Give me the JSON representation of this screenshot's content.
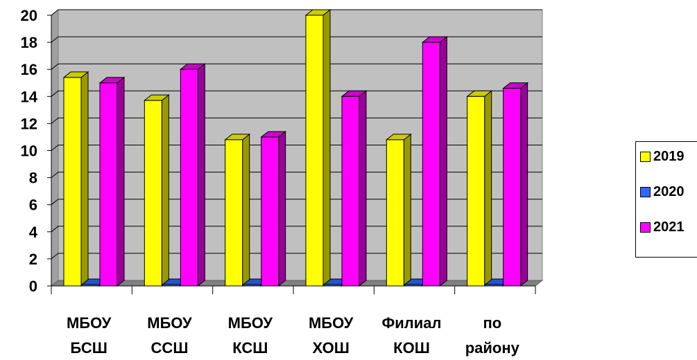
{
  "chart_data": {
    "type": "bar",
    "title": "",
    "xlabel": "",
    "ylabel": "",
    "ylim": [
      0,
      20
    ],
    "yticks": [
      0,
      2,
      4,
      6,
      8,
      10,
      12,
      14,
      16,
      18,
      20
    ],
    "grid": true,
    "legend": "right",
    "categories": [
      [
        "МБОУ",
        "БСШ"
      ],
      [
        "МБОУ",
        "ССШ"
      ],
      [
        "МБОУ",
        "КСШ"
      ],
      [
        "МБОУ",
        "ХОШ"
      ],
      [
        "Филиал",
        "КОШ"
      ],
      [
        "по",
        "району"
      ]
    ],
    "series": [
      {
        "name": "2019",
        "color": "#ffff00",
        "values": [
          15.4,
          13.7,
          10.8,
          20.0,
          10.8,
          14.0
        ]
      },
      {
        "name": "2020",
        "color": "#3366ff",
        "values": [
          0,
          0,
          0,
          0,
          0,
          0
        ]
      },
      {
        "name": "2021",
        "color": "#ff00ff",
        "values": [
          15.0,
          16.0,
          11.0,
          14.0,
          18.0,
          14.6
        ]
      }
    ]
  }
}
